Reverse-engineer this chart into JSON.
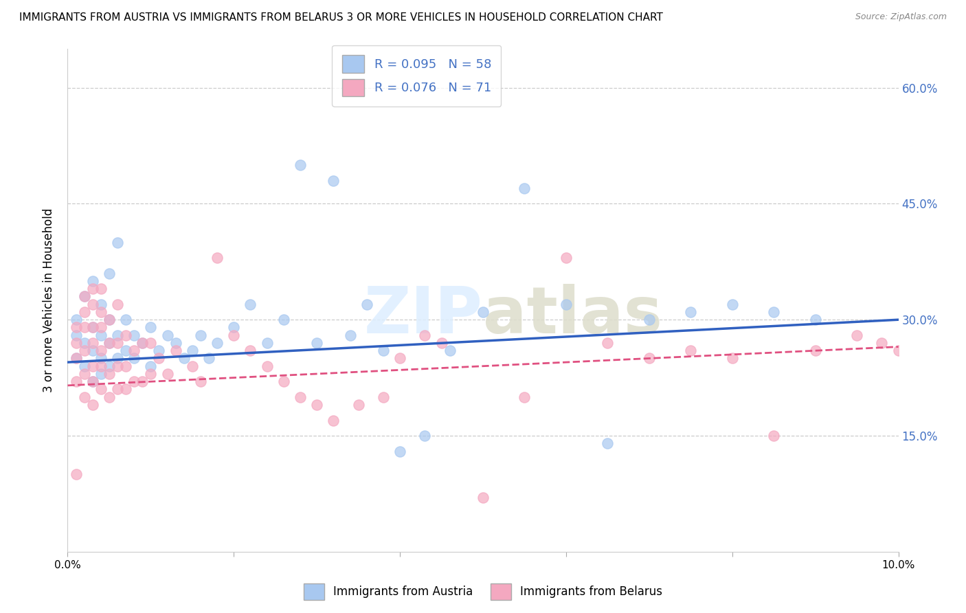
{
  "title": "IMMIGRANTS FROM AUSTRIA VS IMMIGRANTS FROM BELARUS 3 OR MORE VEHICLES IN HOUSEHOLD CORRELATION CHART",
  "source": "Source: ZipAtlas.com",
  "ylabel": "3 or more Vehicles in Household",
  "xlim": [
    0.0,
    0.1
  ],
  "ylim": [
    0.0,
    0.65
  ],
  "xticks": [
    0.0,
    0.02,
    0.04,
    0.06,
    0.08,
    0.1
  ],
  "xtick_labels": [
    "0.0%",
    "",
    "",
    "",
    "",
    "10.0%"
  ],
  "ytick_positions": [
    0.15,
    0.3,
    0.45,
    0.6
  ],
  "ytick_labels": [
    "15.0%",
    "30.0%",
    "45.0%",
    "60.0%"
  ],
  "legend_label1": "R = 0.095   N = 58",
  "legend_label2": "R = 0.076   N = 71",
  "austria_color": "#A8C8F0",
  "belarus_color": "#F4A8C0",
  "austria_line_color": "#3060C0",
  "belarus_line_color": "#E05080",
  "watermark": "ZIPatlas",
  "bottom_legend1": "Immigrants from Austria",
  "bottom_legend2": "Immigrants from Belarus",
  "austria_x": [
    0.001,
    0.001,
    0.001,
    0.002,
    0.002,
    0.002,
    0.003,
    0.003,
    0.003,
    0.003,
    0.004,
    0.004,
    0.004,
    0.004,
    0.005,
    0.005,
    0.005,
    0.005,
    0.006,
    0.006,
    0.006,
    0.007,
    0.007,
    0.008,
    0.008,
    0.009,
    0.01,
    0.01,
    0.011,
    0.012,
    0.013,
    0.014,
    0.015,
    0.016,
    0.017,
    0.018,
    0.02,
    0.022,
    0.024,
    0.026,
    0.028,
    0.03,
    0.032,
    0.034,
    0.036,
    0.038,
    0.04,
    0.043,
    0.046,
    0.05,
    0.055,
    0.06,
    0.065,
    0.07,
    0.075,
    0.08,
    0.085,
    0.09
  ],
  "austria_y": [
    0.25,
    0.28,
    0.3,
    0.24,
    0.27,
    0.33,
    0.22,
    0.26,
    0.29,
    0.35,
    0.23,
    0.25,
    0.28,
    0.32,
    0.24,
    0.27,
    0.3,
    0.36,
    0.25,
    0.28,
    0.4,
    0.26,
    0.3,
    0.25,
    0.28,
    0.27,
    0.24,
    0.29,
    0.26,
    0.28,
    0.27,
    0.25,
    0.26,
    0.28,
    0.25,
    0.27,
    0.29,
    0.32,
    0.27,
    0.3,
    0.5,
    0.27,
    0.48,
    0.28,
    0.32,
    0.26,
    0.13,
    0.15,
    0.26,
    0.31,
    0.47,
    0.32,
    0.14,
    0.3,
    0.31,
    0.32,
    0.31,
    0.3
  ],
  "belarus_x": [
    0.001,
    0.001,
    0.001,
    0.001,
    0.001,
    0.002,
    0.002,
    0.002,
    0.002,
    0.002,
    0.002,
    0.003,
    0.003,
    0.003,
    0.003,
    0.003,
    0.003,
    0.003,
    0.004,
    0.004,
    0.004,
    0.004,
    0.004,
    0.004,
    0.005,
    0.005,
    0.005,
    0.005,
    0.006,
    0.006,
    0.006,
    0.006,
    0.007,
    0.007,
    0.007,
    0.008,
    0.008,
    0.009,
    0.009,
    0.01,
    0.01,
    0.011,
    0.012,
    0.013,
    0.015,
    0.016,
    0.018,
    0.02,
    0.022,
    0.024,
    0.026,
    0.028,
    0.03,
    0.032,
    0.035,
    0.038,
    0.04,
    0.043,
    0.045,
    0.05,
    0.055,
    0.06,
    0.065,
    0.07,
    0.075,
    0.08,
    0.085,
    0.09,
    0.095,
    0.098,
    0.1
  ],
  "belarus_y": [
    0.22,
    0.25,
    0.27,
    0.29,
    0.1,
    0.2,
    0.23,
    0.26,
    0.29,
    0.31,
    0.33,
    0.19,
    0.22,
    0.24,
    0.27,
    0.29,
    0.32,
    0.34,
    0.21,
    0.24,
    0.26,
    0.29,
    0.31,
    0.34,
    0.2,
    0.23,
    0.27,
    0.3,
    0.21,
    0.24,
    0.27,
    0.32,
    0.21,
    0.24,
    0.28,
    0.22,
    0.26,
    0.22,
    0.27,
    0.23,
    0.27,
    0.25,
    0.23,
    0.26,
    0.24,
    0.22,
    0.38,
    0.28,
    0.26,
    0.24,
    0.22,
    0.2,
    0.19,
    0.17,
    0.19,
    0.2,
    0.25,
    0.28,
    0.27,
    0.07,
    0.2,
    0.38,
    0.27,
    0.25,
    0.26,
    0.25,
    0.15,
    0.26,
    0.28,
    0.27,
    0.26
  ]
}
